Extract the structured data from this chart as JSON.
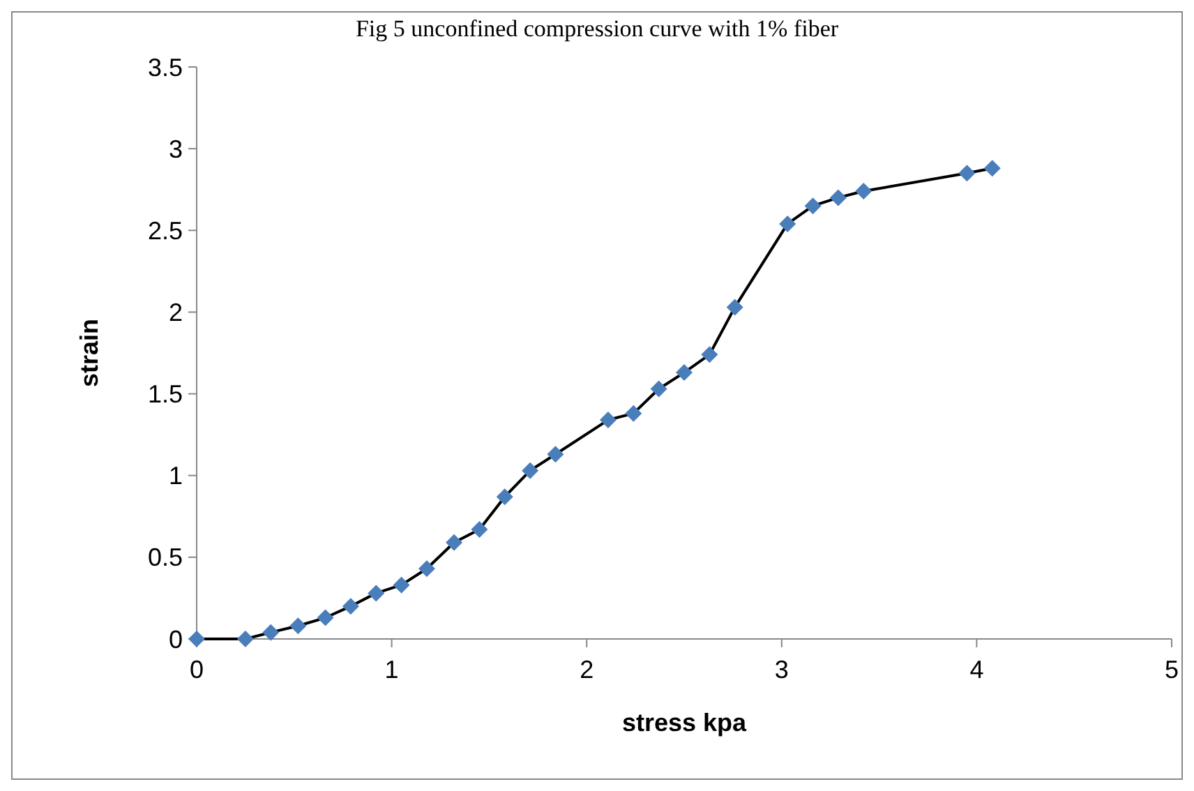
{
  "chart_data": {
    "type": "line",
    "title": "Fig 5 unconfined compression curve with 1% fiber",
    "xlabel": "stress kpa",
    "ylabel": "strain",
    "x": [
      0,
      0.25,
      0.38,
      0.52,
      0.66,
      0.79,
      0.92,
      1.05,
      1.18,
      1.32,
      1.45,
      1.58,
      1.71,
      1.84,
      2.11,
      2.24,
      2.37,
      2.5,
      2.63,
      2.76,
      3.03,
      3.16,
      3.29,
      3.42,
      3.95,
      4.08
    ],
    "series": [
      {
        "color": "#4a7ebb",
        "values": [
          0,
          0,
          0.04,
          0.08,
          0.13,
          0.2,
          0.28,
          0.33,
          0.43,
          0.59,
          0.67,
          0.87,
          1.03,
          1.13,
          1.34,
          1.38,
          1.53,
          1.63,
          1.74,
          2.03,
          2.54,
          2.65,
          2.7,
          2.74,
          2.85,
          2.88
        ]
      }
    ],
    "xlim": [
      0,
      5
    ],
    "xticks": [
      0,
      1,
      2,
      3,
      4,
      5
    ],
    "ylim": [
      0,
      3.5
    ],
    "yticks": [
      0,
      0.5,
      1,
      1.5,
      2,
      2.5,
      3,
      3.5
    ],
    "grid": false,
    "marker": "diamond",
    "line_style": "solid"
  }
}
